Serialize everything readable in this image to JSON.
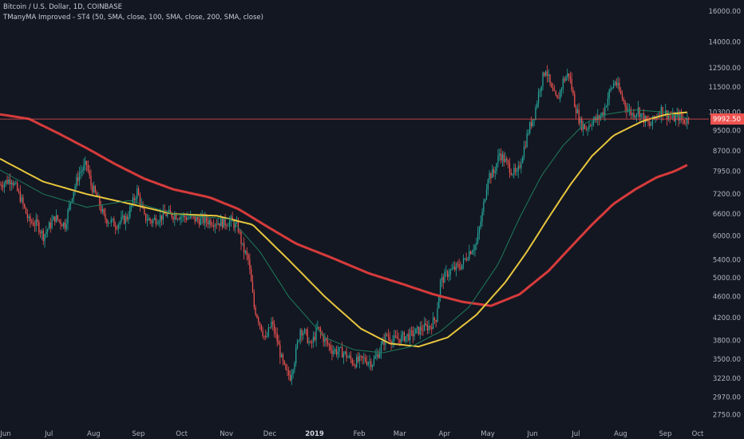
{
  "header": {
    "symbol_line": "Bitcoin / U.S. Dollar, 1D, COINBASE",
    "indicator_line": "TManyMA Improved - ST4 (50, SMA, close, 100, SMA, close, 200, SMA, close)"
  },
  "chart_data": {
    "type": "line",
    "title": "Bitcoin / U.S. Dollar, 1D, COINBASE",
    "y_scale": "log",
    "ylim": [
      2650,
      16800
    ],
    "grid": false,
    "y_ticks": [
      "16000.00",
      "14000.00",
      "12500.00",
      "11500.00",
      "10300.00",
      "9500.00",
      "8700.00",
      "7950.00",
      "7200.00",
      "6600.00",
      "6000.00",
      "5400.00",
      "5000.00",
      "4600.00",
      "4200.00",
      "3800.00",
      "3500.00",
      "3220.00",
      "2970.00",
      "2750.00"
    ],
    "x_ticks": [
      "Jun",
      "Jul",
      "Aug",
      "Sep",
      "Oct",
      "Nov",
      "Dec",
      "2019",
      "Feb",
      "Mar",
      "Apr",
      "May",
      "Jun",
      "Jul",
      "Aug",
      "Sep",
      "Oct"
    ],
    "last_price": "9992.50",
    "colors": {
      "background": "#131722",
      "up": "#26a69a",
      "down": "#ef5350",
      "ma50": "#1e7d5a",
      "ma100": "#e8c63d",
      "ma200": "#d63b3b",
      "price_line": "#ef5350"
    },
    "price_path": {
      "note_units": "x = day index from 2018-06-01, y = USD",
      "keypoints": [
        [
          0,
          7500
        ],
        [
          8,
          7700
        ],
        [
          14,
          7100
        ],
        [
          20,
          6400
        ],
        [
          26,
          6300
        ],
        [
          30,
          6000
        ],
        [
          38,
          6500
        ],
        [
          45,
          6300
        ],
        [
          50,
          7200
        ],
        [
          55,
          7900
        ],
        [
          60,
          8200
        ],
        [
          63,
          7500
        ],
        [
          68,
          7000
        ],
        [
          72,
          6500
        ],
        [
          80,
          6300
        ],
        [
          88,
          6500
        ],
        [
          95,
          7300
        ],
        [
          100,
          6500
        ],
        [
          105,
          6400
        ],
        [
          115,
          6600
        ],
        [
          125,
          6550
        ],
        [
          135,
          6450
        ],
        [
          145,
          6400
        ],
        [
          155,
          6350
        ],
        [
          160,
          6400
        ],
        [
          165,
          6200
        ],
        [
          168,
          5700
        ],
        [
          172,
          5400
        ],
        [
          176,
          4400
        ],
        [
          180,
          4100
        ],
        [
          184,
          3800
        ],
        [
          188,
          4100
        ],
        [
          192,
          3800
        ],
        [
          195,
          3500
        ],
        [
          198,
          3300
        ],
        [
          201,
          3250
        ],
        [
          204,
          3500
        ],
        [
          208,
          4000
        ],
        [
          212,
          3900
        ],
        [
          215,
          3700
        ],
        [
          220,
          4000
        ],
        [
          225,
          3800
        ],
        [
          230,
          3650
        ],
        [
          238,
          3600
        ],
        [
          245,
          3450
        ],
        [
          252,
          3500
        ],
        [
          258,
          3450
        ],
        [
          262,
          3600
        ],
        [
          268,
          3900
        ],
        [
          272,
          3800
        ],
        [
          278,
          3850
        ],
        [
          285,
          3900
        ],
        [
          292,
          4000
        ],
        [
          298,
          4050
        ],
        [
          302,
          4200
        ],
        [
          305,
          4900
        ],
        [
          310,
          5100
        ],
        [
          315,
          5200
        ],
        [
          320,
          5300
        ],
        [
          325,
          5600
        ],
        [
          330,
          5800
        ],
        [
          334,
          6600
        ],
        [
          338,
          7800
        ],
        [
          342,
          7900
        ],
        [
          346,
          8600
        ],
        [
          350,
          8300
        ],
        [
          354,
          8000
        ],
        [
          358,
          7800
        ],
        [
          362,
          8600
        ],
        [
          366,
          9500
        ],
        [
          370,
          10200
        ],
        [
          374,
          11500
        ],
        [
          378,
          12500
        ],
        [
          382,
          11300
        ],
        [
          386,
          10800
        ],
        [
          390,
          11800
        ],
        [
          394,
          12200
        ],
        [
          398,
          10700
        ],
        [
          402,
          9800
        ],
        [
          406,
          9600
        ],
        [
          410,
          9900
        ],
        [
          414,
          10000
        ],
        [
          418,
          10300
        ],
        [
          422,
          11200
        ],
        [
          426,
          11800
        ],
        [
          430,
          11100
        ],
        [
          434,
          10500
        ],
        [
          438,
          10200
        ],
        [
          442,
          10400
        ],
        [
          446,
          10000
        ],
        [
          450,
          9700
        ],
        [
          454,
          10100
        ],
        [
          458,
          10400
        ],
        [
          462,
          10200
        ],
        [
          466,
          10000
        ],
        [
          470,
          10100
        ],
        [
          474,
          9900
        ],
        [
          477,
          9993
        ]
      ]
    },
    "moving_averages": [
      {
        "name": "50",
        "points": [
          [
            0,
            8000
          ],
          [
            30,
            7200
          ],
          [
            60,
            6800
          ],
          [
            90,
            7000
          ],
          [
            120,
            6600
          ],
          [
            160,
            6450
          ],
          [
            180,
            5600
          ],
          [
            200,
            4600
          ],
          [
            225,
            3850
          ],
          [
            245,
            3650
          ],
          [
            265,
            3600
          ],
          [
            285,
            3700
          ],
          [
            305,
            3950
          ],
          [
            325,
            4400
          ],
          [
            345,
            5300
          ],
          [
            360,
            6500
          ],
          [
            375,
            7800
          ],
          [
            390,
            8900
          ],
          [
            405,
            9800
          ],
          [
            420,
            10200
          ],
          [
            440,
            10400
          ],
          [
            460,
            10300
          ],
          [
            477,
            10000
          ]
        ]
      },
      {
        "name": "100",
        "points": [
          [
            0,
            8400
          ],
          [
            30,
            7600
          ],
          [
            60,
            7200
          ],
          [
            90,
            6900
          ],
          [
            120,
            6600
          ],
          [
            150,
            6550
          ],
          [
            175,
            6300
          ],
          [
            200,
            5400
          ],
          [
            225,
            4600
          ],
          [
            250,
            4000
          ],
          [
            270,
            3750
          ],
          [
            290,
            3700
          ],
          [
            310,
            3850
          ],
          [
            330,
            4250
          ],
          [
            350,
            4900
          ],
          [
            365,
            5600
          ],
          [
            380,
            6500
          ],
          [
            395,
            7500
          ],
          [
            410,
            8500
          ],
          [
            425,
            9300
          ],
          [
            445,
            9900
          ],
          [
            462,
            10200
          ],
          [
            477,
            10300
          ]
        ]
      },
      {
        "name": "200",
        "points": [
          [
            0,
            10200
          ],
          [
            20,
            10000
          ],
          [
            40,
            9400
          ],
          [
            60,
            8800
          ],
          [
            80,
            8200
          ],
          [
            100,
            7700
          ],
          [
            120,
            7350
          ],
          [
            145,
            7100
          ],
          [
            165,
            6750
          ],
          [
            185,
            6250
          ],
          [
            205,
            5800
          ],
          [
            230,
            5450
          ],
          [
            255,
            5100
          ],
          [
            280,
            4850
          ],
          [
            300,
            4650
          ],
          [
            320,
            4500
          ],
          [
            340,
            4420
          ],
          [
            360,
            4650
          ],
          [
            380,
            5150
          ],
          [
            395,
            5700
          ],
          [
            410,
            6300
          ],
          [
            425,
            6900
          ],
          [
            440,
            7350
          ],
          [
            455,
            7750
          ],
          [
            467,
            7950
          ],
          [
            477,
            8200
          ]
        ]
      }
    ],
    "month_ticks_day_index": [
      0,
      30,
      61,
      92,
      122,
      153,
      183,
      214,
      245,
      273,
      304,
      334,
      365,
      395,
      426,
      457,
      487
    ]
  }
}
